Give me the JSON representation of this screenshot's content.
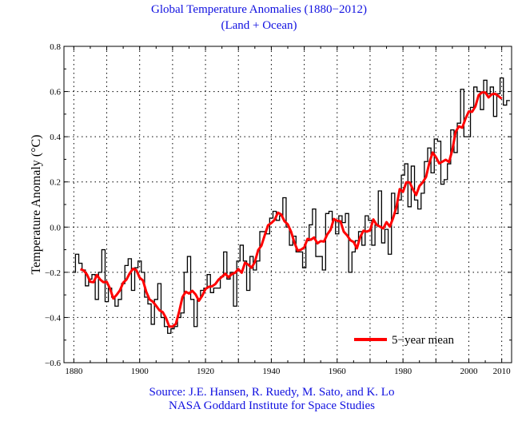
{
  "chart_data": {
    "type": "line",
    "title": "Global Temperature Anomalies (1880−2012)",
    "subtitle": "(Land + Ocean)",
    "xlabel": "",
    "ylabel": "Temperature Anomaly (°C)",
    "xlim": [
      1877,
      2013
    ],
    "ylim": [
      -0.6,
      0.8
    ],
    "x_ticks": [
      1880,
      1900,
      1920,
      1940,
      1960,
      1980,
      2000,
      2010
    ],
    "y_ticks": [
      "0.8",
      "0.6",
      "0.4",
      "0.2",
      "0.0",
      "−0.2",
      "−0.4",
      "−0.6"
    ],
    "grid": true,
    "legend_position": "bottom-right",
    "x_start": 1880,
    "series": [
      {
        "style": "step",
        "color": "#000000",
        "values": [
          -0.2,
          -0.12,
          -0.16,
          -0.19,
          -0.26,
          -0.23,
          -0.21,
          -0.32,
          -0.2,
          -0.1,
          -0.33,
          -0.27,
          -0.31,
          -0.35,
          -0.32,
          -0.25,
          -0.17,
          -0.14,
          -0.28,
          -0.18,
          -0.15,
          -0.2,
          -0.31,
          -0.34,
          -0.43,
          -0.32,
          -0.25,
          -0.4,
          -0.44,
          -0.47,
          -0.45,
          -0.44,
          -0.4,
          -0.38,
          -0.2,
          -0.13,
          -0.32,
          -0.44,
          -0.32,
          -0.28,
          -0.27,
          -0.21,
          -0.29,
          -0.27,
          -0.27,
          -0.22,
          -0.11,
          -0.23,
          -0.2,
          -0.35,
          -0.15,
          -0.08,
          -0.15,
          -0.28,
          -0.13,
          -0.19,
          -0.15,
          -0.02,
          -0.02,
          -0.03,
          0.04,
          0.07,
          0.03,
          0.05,
          0.13,
          0.0,
          -0.08,
          -0.04,
          -0.11,
          -0.11,
          -0.18,
          -0.06,
          0.01,
          0.08,
          -0.13,
          -0.13,
          -0.19,
          0.06,
          0.07,
          0.03,
          -0.03,
          0.05,
          0.02,
          0.06,
          -0.2,
          -0.11,
          -0.06,
          -0.02,
          -0.08,
          0.05,
          0.03,
          -0.08,
          0.01,
          0.16,
          -0.07,
          -0.01,
          -0.12,
          0.15,
          0.06,
          0.12,
          0.23,
          0.28,
          0.09,
          0.27,
          0.12,
          0.08,
          0.15,
          0.29,
          0.35,
          0.24,
          0.39,
          0.38,
          0.19,
          0.21,
          0.28,
          0.43,
          0.33,
          0.46,
          0.61,
          0.4,
          0.4,
          0.53,
          0.62,
          0.6,
          0.52,
          0.65,
          0.59,
          0.62,
          0.49,
          0.59,
          0.66,
          0.54,
          0.56
        ]
      },
      {
        "name": "5−year mean",
        "style": "line",
        "color": "#ff0000",
        "window": 5
      }
    ]
  },
  "source": {
    "line1": "Source: J.E. Hansen, R. Ruedy, M. Sato, and K. Lo",
    "line2": "NASA Goddard Institute for Space Studies"
  }
}
